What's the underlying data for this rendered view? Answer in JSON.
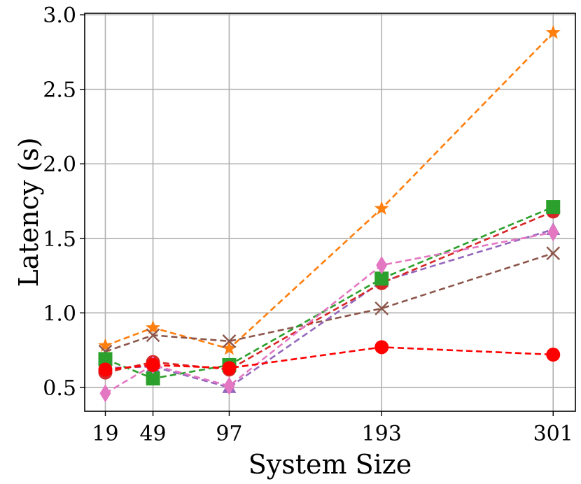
{
  "chart_data": {
    "type": "line",
    "title": "",
    "xlabel": "System Size",
    "ylabel": "Latency (s)",
    "x": [
      19,
      49,
      97,
      193,
      301
    ],
    "x_tick_labels": [
      "19",
      "49",
      "97",
      "193",
      "301"
    ],
    "y_ticks": [
      0.5,
      1.0,
      1.5,
      2.0,
      2.5,
      3.0
    ],
    "y_tick_labels": [
      "0.5",
      "1.0",
      "1.5",
      "2.0",
      "2.5",
      "3.0"
    ],
    "xlim": [
      6,
      315
    ],
    "ylim": [
      0.34,
      3.01
    ],
    "grid": true,
    "legend": "none",
    "series": [
      {
        "name": "series-orange-star",
        "color": "#ff7f0e",
        "marker": "star",
        "values": [
          0.78,
          0.9,
          0.76,
          1.7,
          2.88
        ]
      },
      {
        "name": "series-brown-x",
        "color": "#8c564b",
        "marker": "x",
        "values": [
          0.74,
          0.85,
          0.81,
          1.03,
          1.4
        ]
      },
      {
        "name": "series-purple-triangle",
        "color": "#9467bd",
        "marker": "triangle",
        "values": [
          0.63,
          0.64,
          0.5,
          1.21,
          1.56
        ]
      },
      {
        "name": "series-darkred-circle",
        "color": "#d62728",
        "marker": "circle",
        "values": [
          0.6,
          0.67,
          0.62,
          1.2,
          1.68
        ]
      },
      {
        "name": "series-green-square",
        "color": "#2ca02c",
        "marker": "square",
        "values": [
          0.69,
          0.56,
          0.65,
          1.23,
          1.71
        ]
      },
      {
        "name": "series-pink-diamond",
        "color": "#e377c2",
        "marker": "diamond",
        "values": [
          0.46,
          0.65,
          0.51,
          1.32,
          1.54
        ]
      },
      {
        "name": "series-red-circle",
        "color": "#ff0000",
        "marker": "circle",
        "values": [
          0.62,
          0.65,
          0.63,
          0.77,
          0.72
        ]
      }
    ]
  }
}
